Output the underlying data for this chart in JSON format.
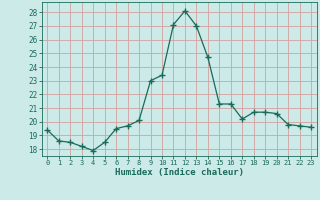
{
  "x": [
    0,
    1,
    2,
    3,
    4,
    5,
    6,
    7,
    8,
    9,
    10,
    11,
    12,
    13,
    14,
    15,
    16,
    17,
    18,
    19,
    20,
    21,
    22,
    23
  ],
  "y": [
    19.4,
    18.6,
    18.5,
    18.2,
    17.9,
    18.5,
    19.5,
    19.7,
    20.1,
    23.0,
    23.4,
    27.1,
    28.1,
    27.0,
    24.7,
    21.3,
    21.3,
    20.2,
    20.7,
    20.7,
    20.6,
    19.8,
    19.7,
    19.6
  ],
  "line_color": "#1a6b5a",
  "marker": "+",
  "marker_size": 4,
  "bg_color": "#cceae7",
  "grid_color": "#d4a0a0",
  "xlabel": "Humidex (Indice chaleur)",
  "ylim": [
    17.5,
    28.75
  ],
  "xlim": [
    -0.5,
    23.5
  ],
  "yticks": [
    18,
    19,
    20,
    21,
    22,
    23,
    24,
    25,
    26,
    27,
    28
  ],
  "xticks": [
    0,
    1,
    2,
    3,
    4,
    5,
    6,
    7,
    8,
    9,
    10,
    11,
    12,
    13,
    14,
    15,
    16,
    17,
    18,
    19,
    20,
    21,
    22,
    23
  ]
}
